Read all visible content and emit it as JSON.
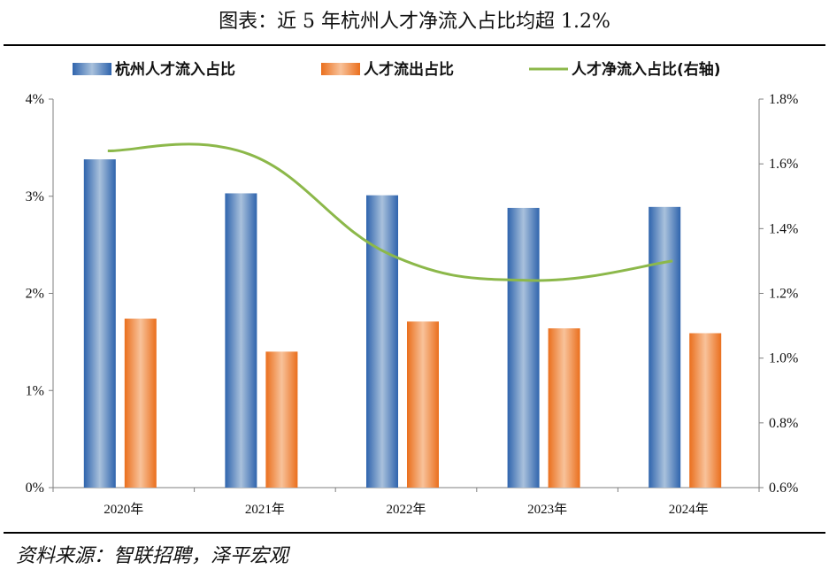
{
  "title": "图表：近 5 年杭州人才净流入占比均超 1.2%",
  "source": "资料来源：智联招聘，泽平宏观",
  "chart_data": {
    "type": "bar",
    "categories": [
      "2020年",
      "2021年",
      "2022年",
      "2023年",
      "2024年"
    ],
    "series": [
      {
        "name": "杭州人才流入占比",
        "kind": "bar",
        "axis": "left",
        "values": [
          3.38,
          3.03,
          3.01,
          2.88,
          2.89
        ]
      },
      {
        "name": "人才流出占比",
        "kind": "bar",
        "axis": "left",
        "values": [
          1.74,
          1.4,
          1.71,
          1.64,
          1.59
        ]
      },
      {
        "name": "人才净流入占比(右轴)",
        "kind": "line",
        "axis": "right",
        "values": [
          1.64,
          1.63,
          1.32,
          1.24,
          1.3
        ]
      }
    ],
    "left_axis": {
      "ylim": [
        0,
        4
      ],
      "ticks": [
        0,
        1,
        2,
        3,
        4
      ],
      "tick_labels": [
        "0%",
        "1%",
        "2%",
        "3%",
        "4%"
      ]
    },
    "right_axis": {
      "ylim": [
        0.6,
        1.8
      ],
      "ticks": [
        0.6,
        0.8,
        1.0,
        1.2,
        1.4,
        1.6,
        1.8
      ],
      "tick_labels": [
        "0.6%",
        "0.8%",
        "1.0%",
        "1.2%",
        "1.4%",
        "1.6%",
        "1.8%"
      ]
    },
    "legend_position": "top",
    "grid": false
  },
  "colors": {
    "inflow_bar": "#4a7fc1",
    "outflow_bar": "#f08a3e",
    "net_line": "#8cb84a",
    "axis": "#7f7f7f"
  }
}
